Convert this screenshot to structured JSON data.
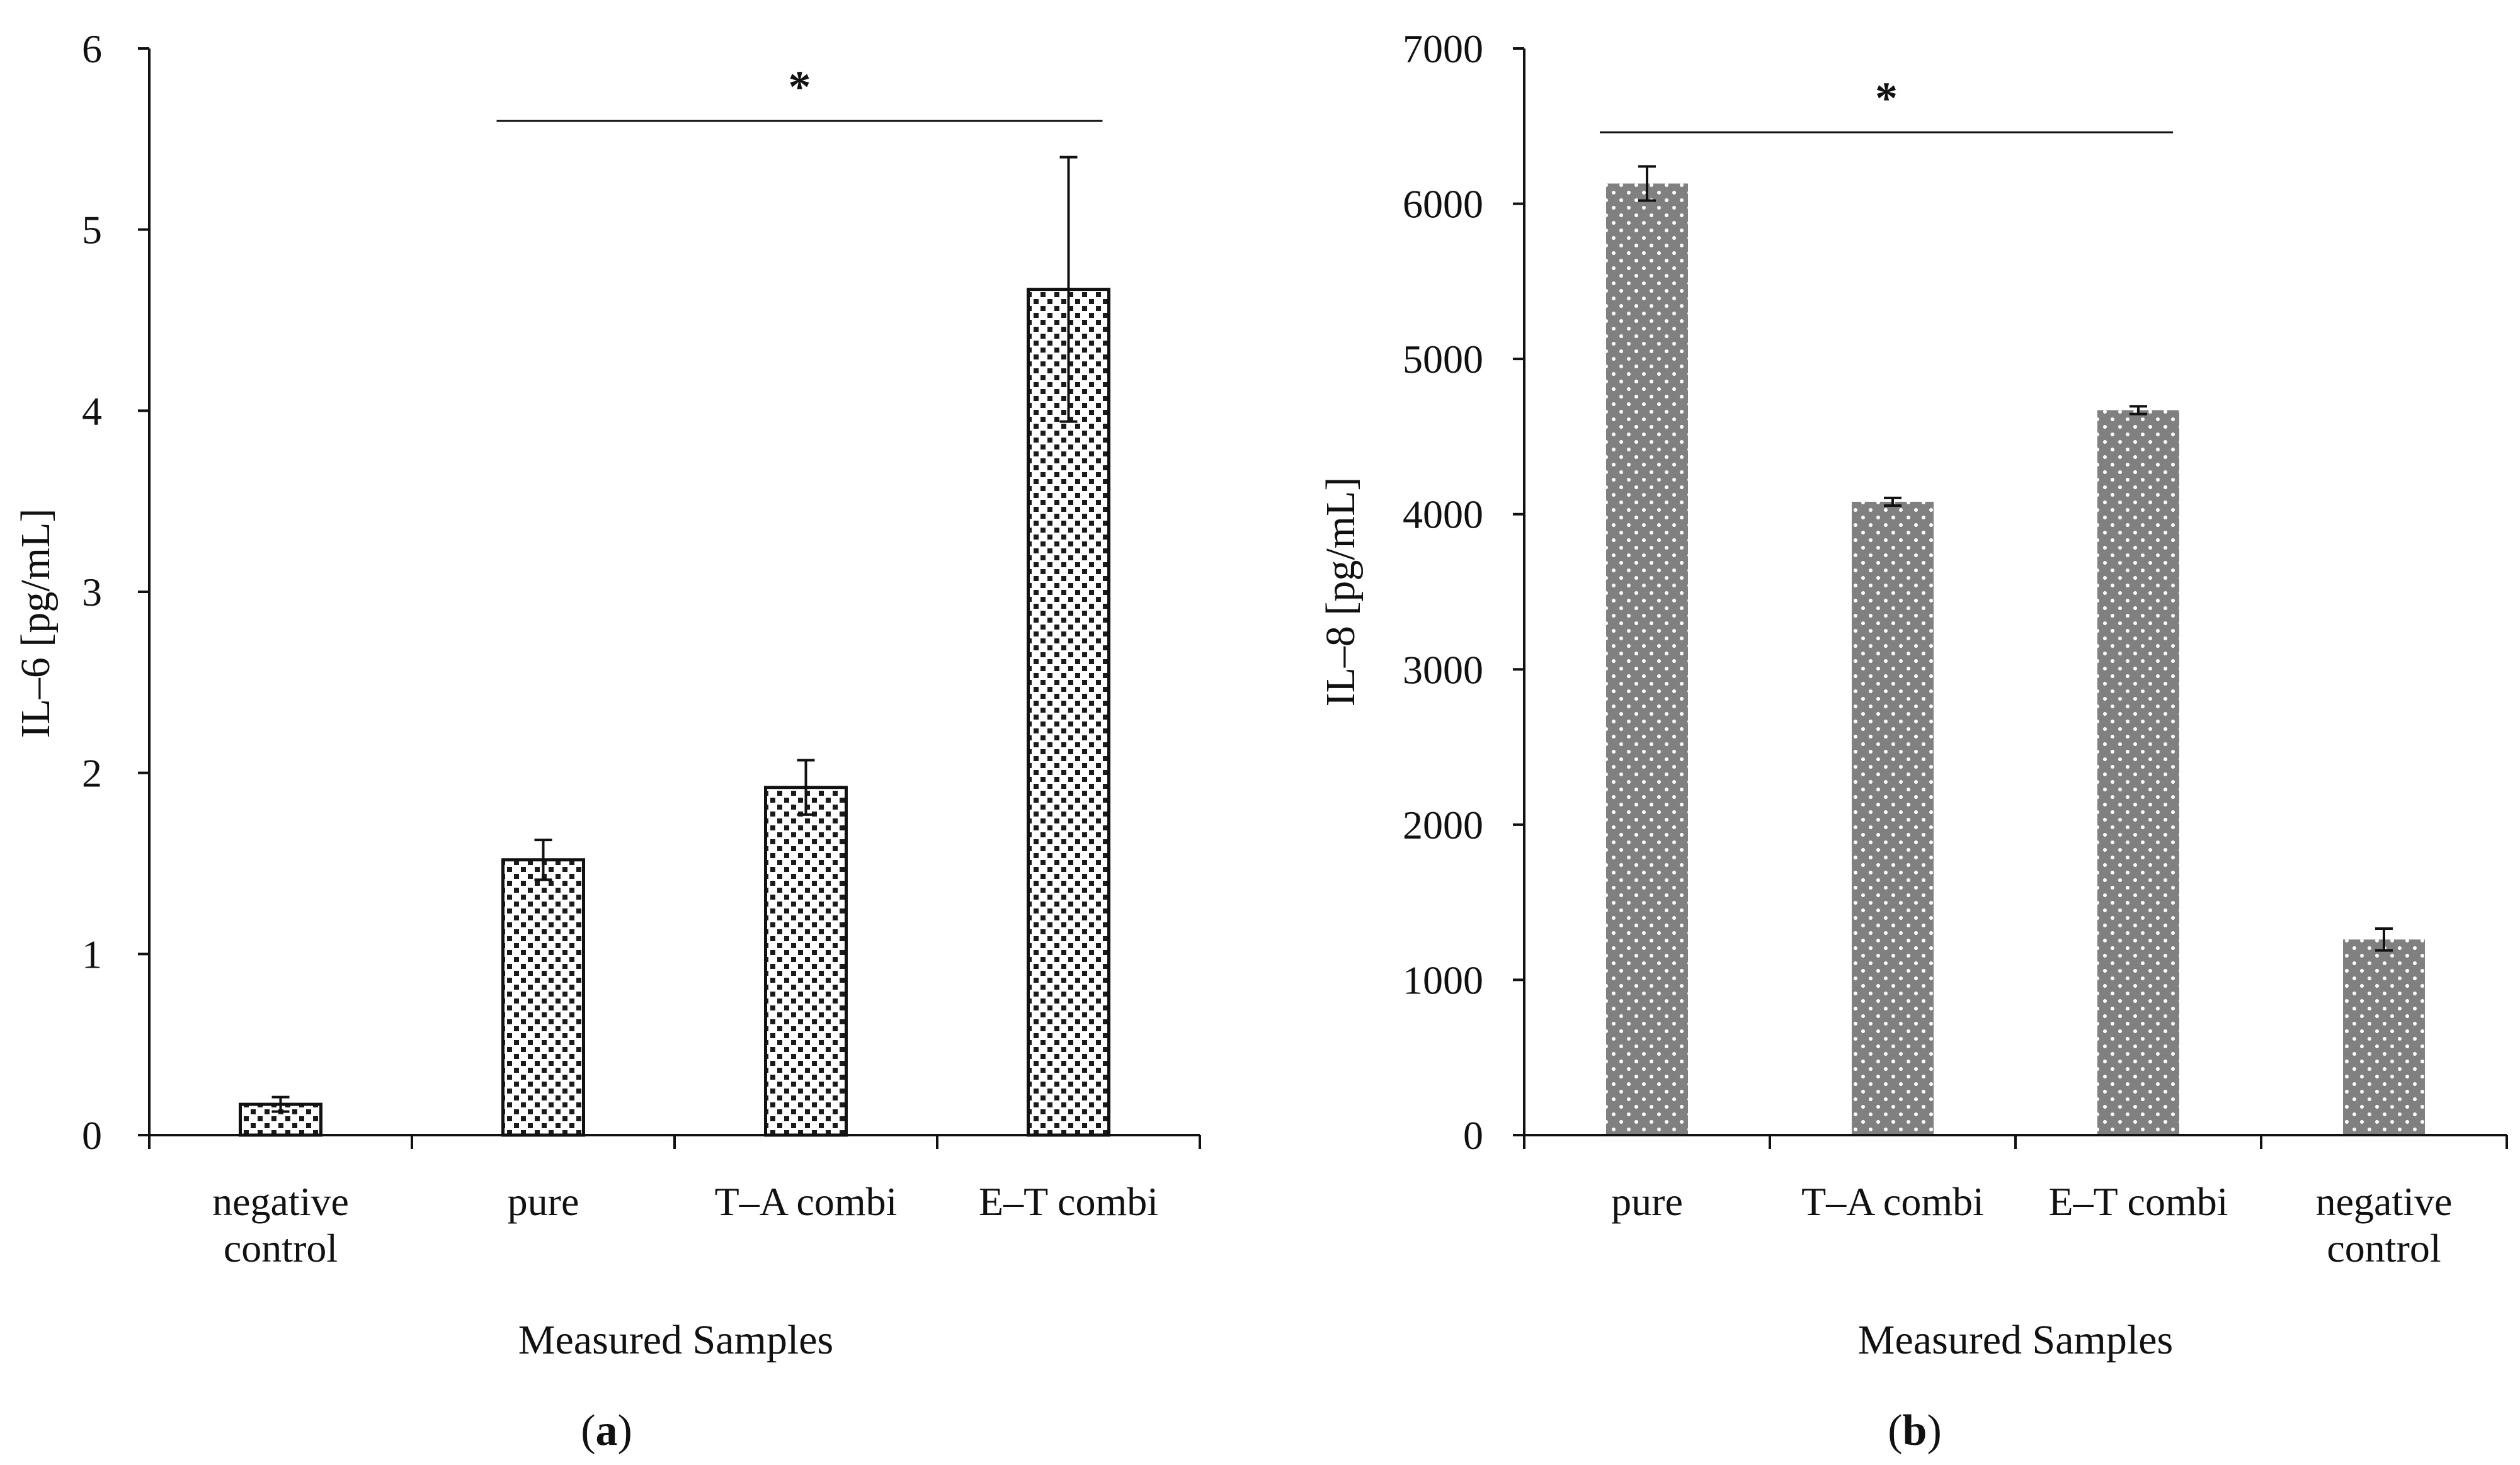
{
  "chart_data": [
    {
      "type": "bar",
      "panel_label": "a",
      "title": "",
      "xlabel": "Measured Samples",
      "ylabel": "IL–6 [pg/mL]",
      "ylim": [
        0,
        6
      ],
      "yticks": [
        "0",
        "1",
        "2",
        "3",
        "4",
        "5",
        "6"
      ],
      "categories": [
        "negative control",
        "pure",
        "T–A combi",
        "E–T combi"
      ],
      "category_lines": [
        [
          "negative",
          "control"
        ],
        [
          "pure"
        ],
        [
          "T–A combi"
        ],
        [
          "E–T combi"
        ]
      ],
      "values": [
        0.17,
        1.52,
        1.92,
        4.67
      ],
      "errors": [
        0.04,
        0.11,
        0.15,
        0.73
      ],
      "significance": {
        "label": "*",
        "from": 1,
        "to": 3,
        "value": 5.6
      },
      "bar_pattern": "checker",
      "grid": false
    },
    {
      "type": "bar",
      "panel_label": "b",
      "title": "",
      "xlabel": "Measured Samples",
      "ylabel": "IL–8 [pg/mL]",
      "ylim": [
        0,
        7000
      ],
      "yticks": [
        "0",
        "1000",
        "2000",
        "3000",
        "4000",
        "5000",
        "6000",
        "7000"
      ],
      "categories": [
        "pure",
        "T–A combi",
        "E–T combi",
        "negative control"
      ],
      "category_lines": [
        [
          "pure"
        ],
        [
          "T–A combi"
        ],
        [
          "E–T combi"
        ],
        [
          "negative",
          "control"
        ]
      ],
      "values": [
        6130,
        4080,
        4670,
        1260
      ],
      "errors": [
        110,
        25,
        25,
        70
      ],
      "significance": {
        "label": "*",
        "from": 0,
        "to": 2,
        "value": 6460
      },
      "bar_color": "#808080",
      "bar_pattern": "dots",
      "grid": false
    }
  ]
}
